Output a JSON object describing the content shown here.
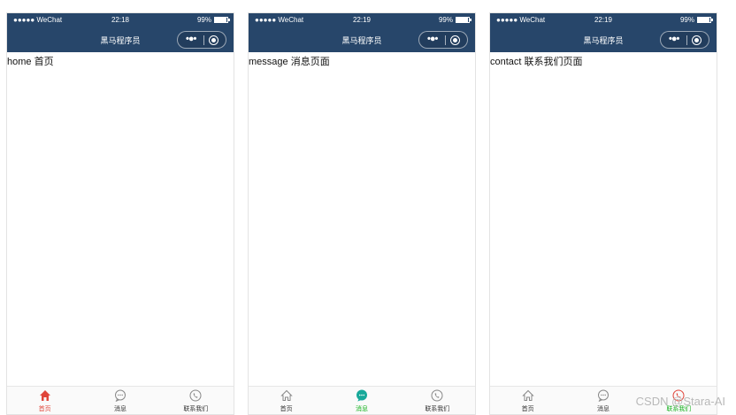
{
  "screens": [
    {
      "status": {
        "carrier": "●●●●● WeChat",
        "time": "22:18",
        "battery": "99%"
      },
      "nav_title": "黑马程序员",
      "content": "home 首页",
      "tabs": [
        {
          "label": "首页",
          "icon": "home-icon",
          "active": true
        },
        {
          "label": "消息",
          "icon": "message-icon",
          "active": false
        },
        {
          "label": "联系我们",
          "icon": "phone-icon",
          "active": false
        }
      ]
    },
    {
      "status": {
        "carrier": "●●●●● WeChat",
        "time": "22:19",
        "battery": "99%"
      },
      "nav_title": "黑马程序员",
      "content": "message 消息页面",
      "tabs": [
        {
          "label": "首页",
          "icon": "home-icon",
          "active": false
        },
        {
          "label": "消息",
          "icon": "message-icon",
          "active": true
        },
        {
          "label": "联系我们",
          "icon": "phone-icon",
          "active": false
        }
      ]
    },
    {
      "status": {
        "carrier": "●●●●● WeChat",
        "time": "22:19",
        "battery": "99%"
      },
      "nav_title": "黑马程序员",
      "content": "contact 联系我们页面",
      "tabs": [
        {
          "label": "首页",
          "icon": "home-icon",
          "active": false
        },
        {
          "label": "消息",
          "icon": "message-icon",
          "active": false
        },
        {
          "label": "联系我们",
          "icon": "phone-icon",
          "active": true
        }
      ]
    }
  ],
  "colors": {
    "nav_bg": "#27466a",
    "home_active": "#e0463b",
    "green_active": "#16b21f",
    "teal_active": "#18a99a"
  },
  "watermark": "CSDN @Stara-AI"
}
